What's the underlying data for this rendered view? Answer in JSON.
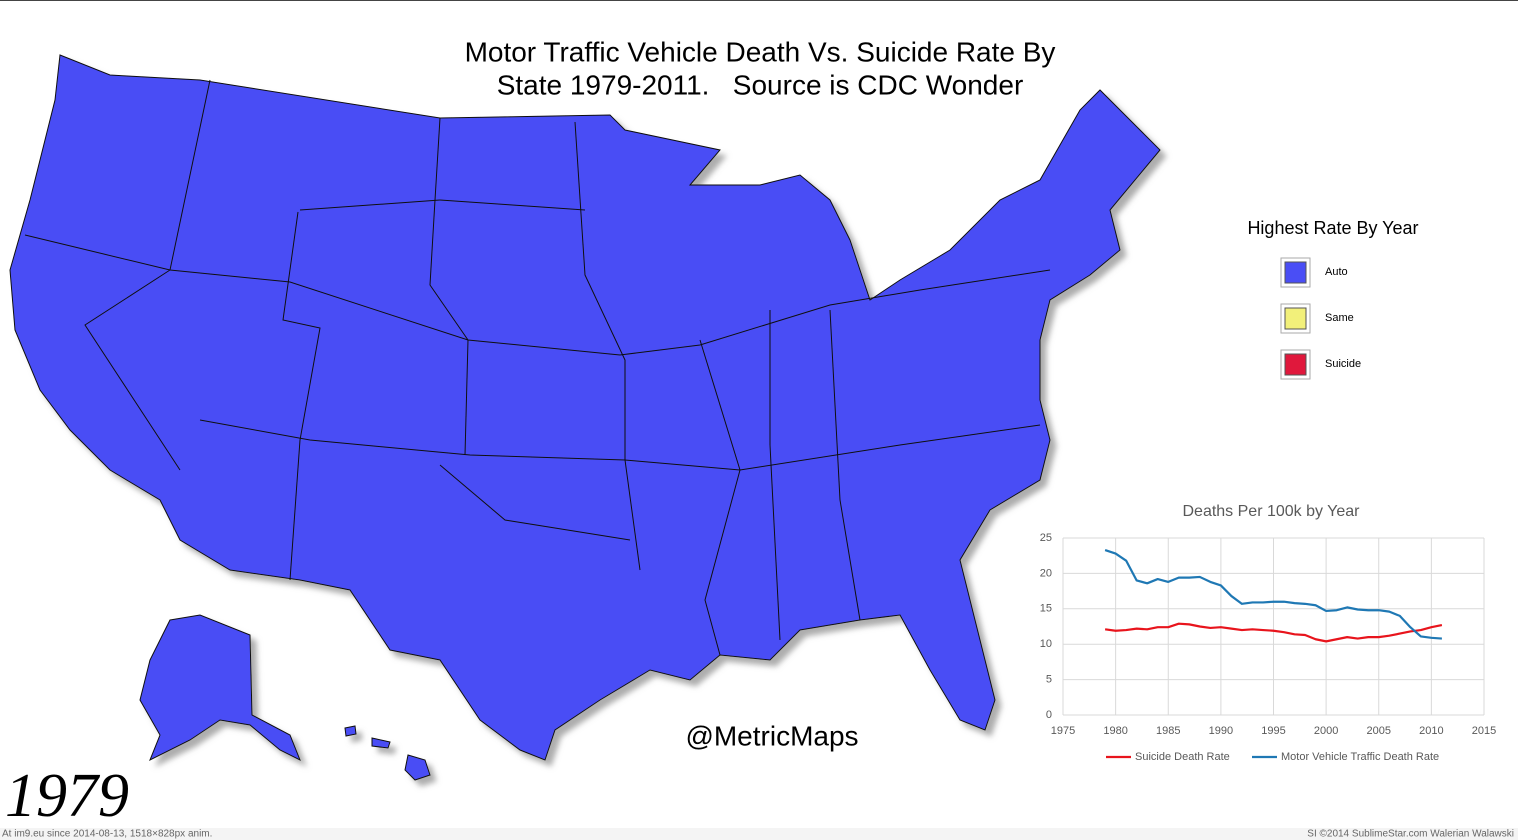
{
  "title_lines": [
    "Motor Traffic Vehicle Death Vs. Suicide Rate By",
    "State 1979-2011.   Source is CDC Wonder"
  ],
  "map_color": "#4a4ef5",
  "legend": {
    "title": "Highest Rate By Year",
    "items": [
      {
        "label": "Auto",
        "color": "#4a4ef5"
      },
      {
        "label": "Same",
        "color": "#f2f07a"
      },
      {
        "label": "Suicide",
        "color": "#e0183c"
      }
    ]
  },
  "watermark": "@MetricMaps",
  "year": "1979",
  "footer_left": "At im9.eu since 2014-08-13, 1518×828px anim.",
  "footer_right": "SI ©2014 SublimeStar.com Walerian Walawski",
  "chart_data": {
    "type": "line",
    "title": "Deaths Per 100k by Year",
    "x": [
      1979,
      1980,
      1981,
      1982,
      1983,
      1984,
      1985,
      1986,
      1987,
      1988,
      1989,
      1990,
      1991,
      1992,
      1993,
      1994,
      1995,
      1996,
      1997,
      1998,
      1999,
      2000,
      2001,
      2002,
      2003,
      2004,
      2005,
      2006,
      2007,
      2008,
      2009,
      2010,
      2011
    ],
    "series": [
      {
        "name": "Suicide Death Rate",
        "color": "#e8141c",
        "values": [
          12.1,
          11.9,
          12.0,
          12.2,
          12.1,
          12.4,
          12.4,
          12.9,
          12.8,
          12.5,
          12.3,
          12.4,
          12.2,
          12.0,
          12.1,
          12.0,
          11.9,
          11.7,
          11.4,
          11.3,
          10.7,
          10.4,
          10.7,
          11.0,
          10.8,
          11.0,
          11.0,
          11.2,
          11.5,
          11.8,
          12.0,
          12.4,
          12.7
        ]
      },
      {
        "name": "Motor Vehicle Traffic Death Rate",
        "color": "#1f78b4",
        "values": [
          23.3,
          22.8,
          21.8,
          19.0,
          18.6,
          19.2,
          18.8,
          19.4,
          19.4,
          19.5,
          18.8,
          18.3,
          16.8,
          15.7,
          15.9,
          15.9,
          16.0,
          16.0,
          15.8,
          15.7,
          15.5,
          14.7,
          14.8,
          15.2,
          14.9,
          14.8,
          14.8,
          14.6,
          14.0,
          12.4,
          11.1,
          10.9,
          10.8
        ]
      }
    ],
    "xlim": [
      1975,
      2015
    ],
    "xticks": [
      1975,
      1980,
      1985,
      1990,
      1995,
      2000,
      2005,
      2010,
      2015
    ],
    "ylim": [
      0,
      25
    ],
    "yticks": [
      0,
      5,
      10,
      15,
      20,
      25
    ],
    "grid": true
  }
}
